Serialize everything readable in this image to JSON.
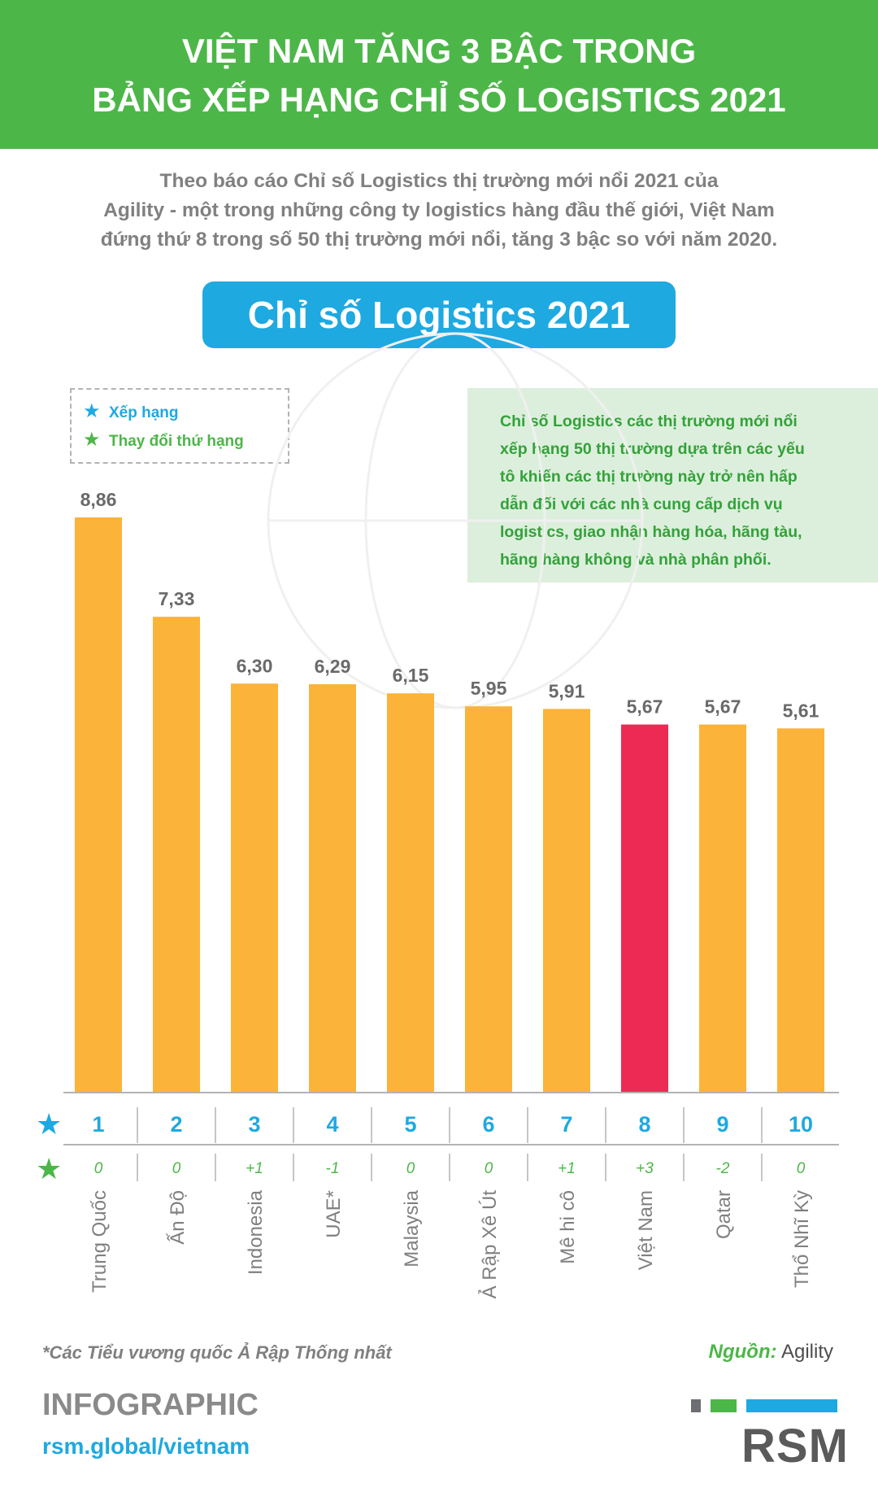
{
  "header": {
    "line1": "VIỆT NAM TĂNG 3 BẬC TRONG",
    "line2": "BẢNG XẾP HẠNG CHỈ SỐ LOGISTICS 2021"
  },
  "intro": {
    "line1": "Theo báo cáo Chỉ số Logistics thị trường mới nổi 2021 của",
    "line2": "Agility - một trong những công ty logistics hàng đầu thế giới, Việt Nam",
    "line3": "đứng thứ 8 trong số 50 thị trường mới nổi, tăng 3 bậc so với năm 2020."
  },
  "pill_title": "Chỉ số Logistics 2021",
  "legend": {
    "rank_label": "Xếp hạng",
    "change_label": "Thay đổi thứ hạng"
  },
  "infobox": {
    "lines": [
      "Chỉ số Logistics các thị trường mới nổi",
      "xếp hạng 50 thị trường dựa trên các yếu",
      "tô khiến các thị trường này trở nên hấp",
      "dẫn đối với các nhà cung cấp dịch vụ",
      "logistics, giao nhận hàng hóa, hãng tàu,",
      "hãng hàng không và nhà phân phối."
    ]
  },
  "chart_data": {
    "type": "bar",
    "title": "Chỉ số Logistics 2021",
    "categories": [
      "Trung Quốc",
      "Ấn Độ",
      "Indonesia",
      "UAE*",
      "Malaysia",
      "Ả Rập Xê Út",
      "Mê hi cô",
      "Việt Nam",
      "Qatar",
      "Thổ Nhĩ Kỳ"
    ],
    "values": [
      8.86,
      7.33,
      6.3,
      6.29,
      6.15,
      5.95,
      5.91,
      5.67,
      5.67,
      5.61
    ],
    "value_labels": [
      "8,86",
      "7,33",
      "6,30",
      "6,29",
      "6,15",
      "5,95",
      "5,91",
      "5,67",
      "5,67",
      "5,61"
    ],
    "ranks": [
      "1",
      "2",
      "3",
      "4",
      "5",
      "6",
      "7",
      "8",
      "9",
      "10"
    ],
    "rank_changes": [
      "0",
      "0",
      "+1",
      "-1",
      "0",
      "0",
      "+1",
      "+3",
      "-2",
      "0"
    ],
    "highlight_index": 7,
    "ylim": [
      0,
      8.86
    ],
    "xlabel": "",
    "ylabel": "",
    "legend": [
      "Xếp hạng",
      "Thay đổi thứ hạng"
    ]
  },
  "colors": {
    "green": "#4cb748",
    "blue": "#1ea9e1",
    "bar": "#fbb33a",
    "highlight": "#ec2a53",
    "grey_text": "#808080",
    "rsm_grey": "#6d6e71"
  },
  "icons": {
    "rank_marker": "star-icon-blue",
    "change_marker": "star-icon-green"
  },
  "footer": {
    "footnote": "*Các Tiểu vương quốc Ả Rập Thống nhất",
    "source_label": "Nguồn:",
    "source_value": " Agility",
    "brand": "INFOGRAPHIC",
    "site": "rsm.global/vietnam",
    "logo": "RSM"
  }
}
